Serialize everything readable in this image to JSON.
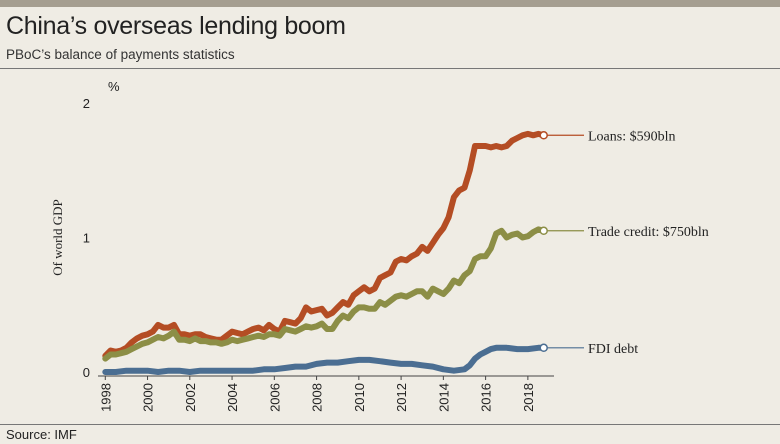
{
  "header": {
    "title": "China’s overseas lending boom",
    "subtitle": "PBoC’s balance of payments statistics"
  },
  "footer": {
    "source": "Source: IMF"
  },
  "chart_data": {
    "type": "line",
    "title": "China’s overseas lending boom",
    "subtitle": "PBoC’s balance of payments statistics",
    "ylabel": "Of world GDP",
    "yunit": "%",
    "ylim": [
      0,
      2
    ],
    "yticks": [
      "0",
      "1",
      "2"
    ],
    "xlim": [
      1997.75,
      2019.0
    ],
    "xticks": [
      "1998",
      "2000",
      "2002",
      "2004",
      "2006",
      "2008",
      "2010",
      "2012",
      "2014",
      "2016",
      "2018"
    ],
    "grid": false,
    "legend": "direct labels at line ends",
    "series": [
      {
        "name": "Loans: $590bln",
        "color": "#b44d24",
        "x": [
          1998.0,
          1998.25,
          1998.5,
          1998.75,
          1999.0,
          1999.25,
          1999.5,
          1999.75,
          2000.0,
          2000.25,
          2000.5,
          2000.75,
          2001.0,
          2001.25,
          2001.5,
          2001.75,
          2002.0,
          2002.25,
          2002.5,
          2002.75,
          2003.0,
          2003.25,
          2003.5,
          2003.75,
          2004.0,
          2004.25,
          2004.5,
          2004.75,
          2005.0,
          2005.25,
          2005.5,
          2005.75,
          2006.0,
          2006.25,
          2006.5,
          2006.75,
          2007.0,
          2007.25,
          2007.5,
          2007.75,
          2008.0,
          2008.25,
          2008.5,
          2008.75,
          2009.0,
          2009.25,
          2009.5,
          2009.75,
          2010.0,
          2010.25,
          2010.5,
          2010.75,
          2011.0,
          2011.25,
          2011.5,
          2011.75,
          2012.0,
          2012.25,
          2012.5,
          2012.75,
          2013.0,
          2013.25,
          2013.5,
          2013.75,
          2014.0,
          2014.25,
          2014.5,
          2014.75,
          2015.0,
          2015.25,
          2015.5,
          2015.75,
          2016.0,
          2016.25,
          2016.5,
          2016.75,
          2017.0,
          2017.25,
          2017.5,
          2017.75,
          2018.0,
          2018.25,
          2018.5,
          2018.75
        ],
        "values": [
          0.12,
          0.16,
          0.15,
          0.16,
          0.18,
          0.22,
          0.25,
          0.27,
          0.28,
          0.3,
          0.35,
          0.33,
          0.33,
          0.35,
          0.28,
          0.28,
          0.27,
          0.28,
          0.28,
          0.26,
          0.25,
          0.24,
          0.24,
          0.27,
          0.3,
          0.29,
          0.28,
          0.3,
          0.32,
          0.33,
          0.31,
          0.35,
          0.32,
          0.3,
          0.38,
          0.37,
          0.36,
          0.4,
          0.48,
          0.45,
          0.46,
          0.47,
          0.42,
          0.44,
          0.48,
          0.52,
          0.5,
          0.57,
          0.6,
          0.63,
          0.6,
          0.62,
          0.7,
          0.72,
          0.74,
          0.82,
          0.84,
          0.83,
          0.86,
          0.88,
          0.93,
          0.9,
          0.96,
          1.02,
          1.07,
          1.15,
          1.3,
          1.35,
          1.37,
          1.5,
          1.68,
          1.68,
          1.68,
          1.67,
          1.68,
          1.67,
          1.68,
          1.72,
          1.74,
          1.76,
          1.77,
          1.76,
          1.77,
          1.76
        ]
      },
      {
        "name": "Trade credit: $750bln",
        "color": "#8c8e46",
        "x": [
          1998.0,
          1998.25,
          1998.5,
          1998.75,
          1999.0,
          1999.25,
          1999.5,
          1999.75,
          2000.0,
          2000.25,
          2000.5,
          2000.75,
          2001.0,
          2001.25,
          2001.5,
          2001.75,
          2002.0,
          2002.25,
          2002.5,
          2002.75,
          2003.0,
          2003.25,
          2003.5,
          2003.75,
          2004.0,
          2004.25,
          2004.5,
          2004.75,
          2005.0,
          2005.25,
          2005.5,
          2005.75,
          2006.0,
          2006.25,
          2006.5,
          2006.75,
          2007.0,
          2007.25,
          2007.5,
          2007.75,
          2008.0,
          2008.25,
          2008.5,
          2008.75,
          2009.0,
          2009.25,
          2009.5,
          2009.75,
          2010.0,
          2010.25,
          2010.5,
          2010.75,
          2011.0,
          2011.25,
          2011.5,
          2011.75,
          2012.0,
          2012.25,
          2012.5,
          2012.75,
          2013.0,
          2013.25,
          2013.5,
          2013.75,
          2014.0,
          2014.25,
          2014.5,
          2014.75,
          2015.0,
          2015.25,
          2015.5,
          2015.75,
          2016.0,
          2016.25,
          2016.5,
          2016.75,
          2017.0,
          2017.25,
          2017.5,
          2017.75,
          2018.0,
          2018.25,
          2018.5,
          2018.75
        ],
        "values": [
          0.1,
          0.13,
          0.13,
          0.14,
          0.15,
          0.17,
          0.19,
          0.21,
          0.22,
          0.24,
          0.26,
          0.25,
          0.27,
          0.3,
          0.24,
          0.24,
          0.23,
          0.25,
          0.23,
          0.23,
          0.22,
          0.22,
          0.21,
          0.22,
          0.24,
          0.23,
          0.24,
          0.25,
          0.26,
          0.27,
          0.26,
          0.28,
          0.28,
          0.27,
          0.32,
          0.31,
          0.3,
          0.32,
          0.34,
          0.33,
          0.34,
          0.36,
          0.32,
          0.32,
          0.38,
          0.42,
          0.4,
          0.45,
          0.48,
          0.48,
          0.47,
          0.47,
          0.52,
          0.5,
          0.53,
          0.56,
          0.57,
          0.56,
          0.58,
          0.6,
          0.6,
          0.56,
          0.62,
          0.6,
          0.58,
          0.62,
          0.68,
          0.66,
          0.72,
          0.75,
          0.84,
          0.86,
          0.86,
          0.92,
          1.03,
          1.05,
          1.0,
          1.02,
          1.03,
          1.0,
          1.01,
          1.04,
          1.06,
          1.05
        ]
      },
      {
        "name": "FDI debt",
        "color": "#4b6e92",
        "x": [
          1998.0,
          1998.5,
          1999.0,
          1999.5,
          2000.0,
          2000.5,
          2001.0,
          2001.5,
          2002.0,
          2002.5,
          2003.0,
          2003.5,
          2004.0,
          2004.5,
          2005.0,
          2005.5,
          2006.0,
          2006.5,
          2007.0,
          2007.5,
          2008.0,
          2008.5,
          2009.0,
          2009.5,
          2010.0,
          2010.5,
          2011.0,
          2011.5,
          2012.0,
          2012.5,
          2013.0,
          2013.5,
          2014.0,
          2014.5,
          2015.0,
          2015.25,
          2015.5,
          2015.75,
          2016.0,
          2016.25,
          2016.5,
          2016.75,
          2017.0,
          2017.5,
          2018.0,
          2018.5,
          2018.75
        ],
        "values": [
          0.0,
          0.0,
          0.01,
          0.01,
          0.01,
          0.0,
          0.01,
          0.01,
          0.0,
          0.01,
          0.01,
          0.01,
          0.01,
          0.01,
          0.01,
          0.02,
          0.02,
          0.03,
          0.04,
          0.04,
          0.06,
          0.07,
          0.07,
          0.08,
          0.09,
          0.09,
          0.08,
          0.07,
          0.06,
          0.06,
          0.05,
          0.04,
          0.02,
          0.01,
          0.02,
          0.05,
          0.1,
          0.13,
          0.15,
          0.17,
          0.18,
          0.18,
          0.18,
          0.17,
          0.17,
          0.18,
          0.18
        ]
      }
    ]
  }
}
